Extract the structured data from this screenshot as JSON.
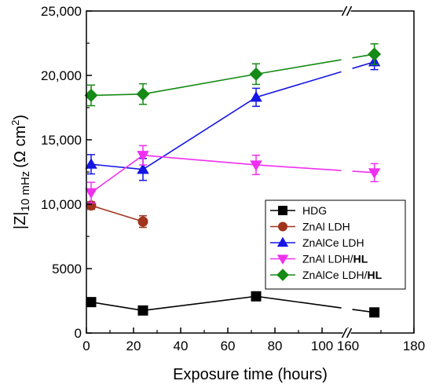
{
  "chart_data": {
    "type": "line",
    "xlabel": "Exposure time (hours)",
    "ylabel_main": "|Z|",
    "ylabel_sub": "10 mHz",
    "ylabel_unit": "(Ω cm",
    "ylabel_sup": "2",
    "ylabel_close": ")",
    "xlim": [
      0,
      180
    ],
    "ylim": [
      0,
      25000
    ],
    "x_ticks": [
      0,
      20,
      40,
      60,
      80,
      100,
      120,
      140,
      160,
      180
    ],
    "x_tick_labels": [
      "0",
      "20",
      "40",
      "60",
      "80",
      "100",
      "160",
      "180"
    ],
    "y_ticks": [
      0,
      5000,
      10000,
      15000,
      20000,
      25000
    ],
    "y_tick_labels": [
      "0",
      "5000",
      "10,000",
      "15,000",
      "20,000",
      "25,000"
    ],
    "axis_break": {
      "x_from": 110,
      "x_to": 160,
      "symbol": "//"
    },
    "grid": false,
    "legend_position": "lower-right",
    "series": [
      {
        "name": "HDG",
        "bold_suffix": "",
        "color": "#000000",
        "marker": "square",
        "x": [
          2,
          24,
          72,
          168
        ],
        "y": [
          2400,
          1750,
          2850,
          1600
        ],
        "err": [
          0,
          0,
          0,
          0
        ]
      },
      {
        "name": "ZnAl LDH",
        "bold_suffix": "",
        "color": "#A0341C",
        "marker": "circle",
        "x": [
          2,
          24
        ],
        "y": [
          9900,
          8650
        ],
        "err": [
          300,
          450
        ]
      },
      {
        "name": "ZnAlCe LDH",
        "bold_suffix": "",
        "color": "#1515E6",
        "marker": "triangle-up",
        "x": [
          2,
          24,
          72,
          168
        ],
        "y": [
          13100,
          12700,
          18300,
          21050
        ],
        "err": [
          750,
          850,
          700,
          600
        ]
      },
      {
        "name": "ZnAl LDH/",
        "bold_suffix": "HL",
        "color": "#F030F0",
        "marker": "triangle-down",
        "x": [
          2,
          24,
          72,
          168
        ],
        "y": [
          10900,
          13800,
          13050,
          12450
        ],
        "err": [
          800,
          750,
          750,
          700
        ]
      },
      {
        "name": "ZnAlCe LDH/",
        "bold_suffix": "HL",
        "color": "#158A15",
        "marker": "diamond",
        "x": [
          2,
          24,
          72,
          168
        ],
        "y": [
          18450,
          18550,
          20100,
          21650
        ],
        "err": [
          800,
          800,
          800,
          800
        ]
      }
    ]
  }
}
